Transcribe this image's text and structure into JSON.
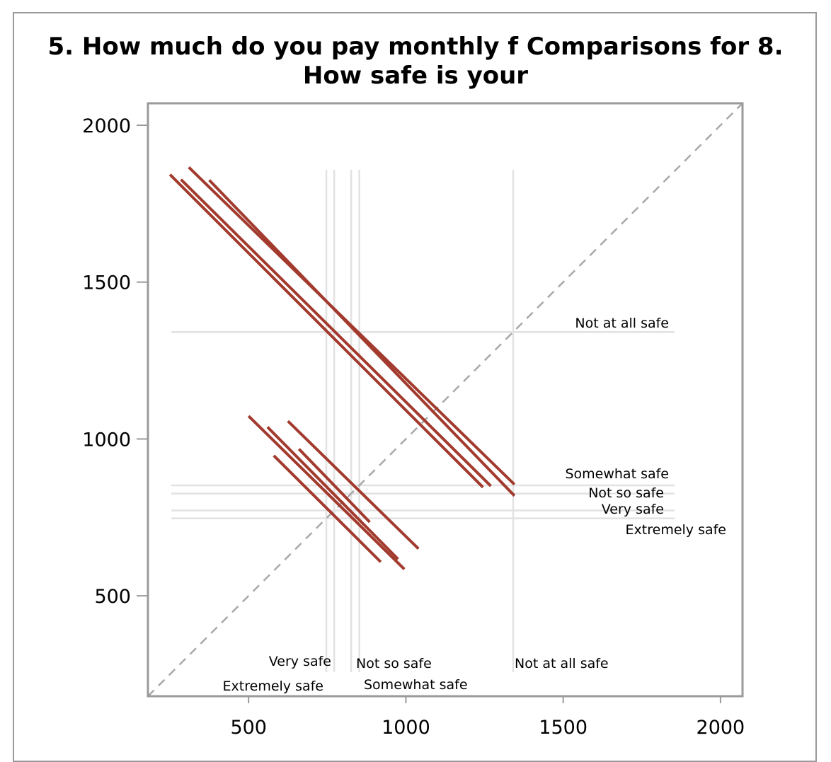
{
  "chart_data": {
    "type": "line",
    "title": "5. How much do you pay monthly f Comparisons for 8. How safe is your",
    "xlabel": "",
    "ylabel": "",
    "xlim": [
      180,
      2070
    ],
    "ylim": [
      180,
      2070
    ],
    "xticks": [
      500,
      1000,
      1500,
      2000
    ],
    "yticks": [
      500,
      1000,
      1500,
      2000
    ],
    "diagonal_reference": true,
    "vertical_reference_lines": [
      {
        "label": "Extremely safe",
        "x": 747
      },
      {
        "label": "Very safe",
        "x": 772
      },
      {
        "label": "Not so safe",
        "x": 826
      },
      {
        "label": "Somewhat safe",
        "x": 852
      },
      {
        "label": "Not at all safe",
        "x": 1341
      }
    ],
    "horizontal_reference_lines": [
      {
        "label": "Not at all safe",
        "y": 1341
      },
      {
        "label": "Somewhat safe",
        "y": 852
      },
      {
        "label": "Not so safe",
        "y": 826
      },
      {
        "label": "Very safe",
        "y": 772
      },
      {
        "label": "Extremely safe",
        "y": 747
      }
    ],
    "comparison_segments": [
      {
        "x": [
          250,
          1245
        ],
        "y": [
          1843,
          846
        ]
      },
      {
        "x": [
          285,
          1270
        ],
        "y": [
          1827,
          850
        ]
      },
      {
        "x": [
          310,
          1345
        ],
        "y": [
          1866,
          855
        ]
      },
      {
        "x": [
          375,
          1345
        ],
        "y": [
          1825,
          819
        ]
      },
      {
        "x": [
          500,
          995
        ],
        "y": [
          1073,
          585
        ]
      },
      {
        "x": [
          560,
          975
        ],
        "y": [
          1038,
          617
        ]
      },
      {
        "x": [
          625,
          1040
        ],
        "y": [
          1057,
          650
        ]
      },
      {
        "x": [
          580,
          920
        ],
        "y": [
          947,
          608
        ]
      },
      {
        "x": [
          660,
          885
        ],
        "y": [
          968,
          735
        ]
      }
    ],
    "colors": {
      "segment": "#a23a2e",
      "reference": "#e2e2e2",
      "diagonal": "#a8a8a8",
      "frame": "#9a9a9a"
    }
  }
}
